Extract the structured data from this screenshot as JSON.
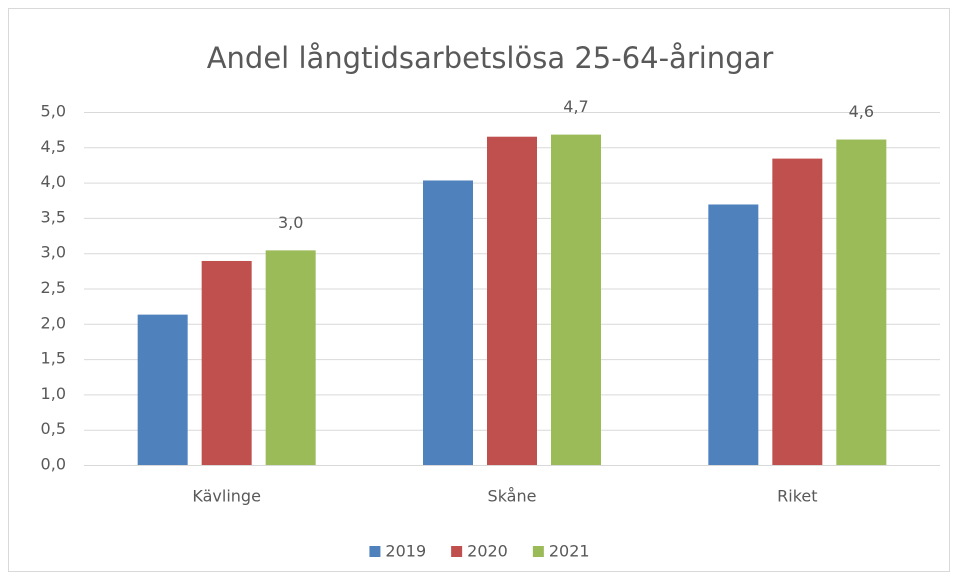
{
  "chart_data": {
    "type": "bar",
    "title": "Andel långtidsarbetslösa 25-64-åringar",
    "categories": [
      "Kävlinge",
      "Skåne",
      "Riket"
    ],
    "series": [
      {
        "name": "2019",
        "color": "#4f81bd",
        "values": [
          2.13,
          4.03,
          3.69
        ]
      },
      {
        "name": "2020",
        "color": "#c0504d",
        "values": [
          2.89,
          4.65,
          4.34
        ]
      },
      {
        "name": "2021",
        "color": "#9bbb59",
        "values": [
          3.04,
          4.68,
          4.61
        ],
        "value_labels": [
          "3,0",
          "4,7",
          "4,6"
        ]
      }
    ],
    "ylim": [
      0,
      5
    ],
    "yticks": [
      {
        "value": 0,
        "label": "0,0"
      },
      {
        "value": 0.5,
        "label": "0,5"
      },
      {
        "value": 1,
        "label": "1,0"
      },
      {
        "value": 1.5,
        "label": "1,5"
      },
      {
        "value": 2,
        "label": "2,0"
      },
      {
        "value": 2.5,
        "label": "2,5"
      },
      {
        "value": 3,
        "label": "3,0"
      },
      {
        "value": 3.5,
        "label": "3,5"
      },
      {
        "value": 4,
        "label": "4,0"
      },
      {
        "value": 4.5,
        "label": "4,5"
      },
      {
        "value": 5,
        "label": "5,0"
      }
    ],
    "grid": true,
    "legend": "bottom"
  }
}
